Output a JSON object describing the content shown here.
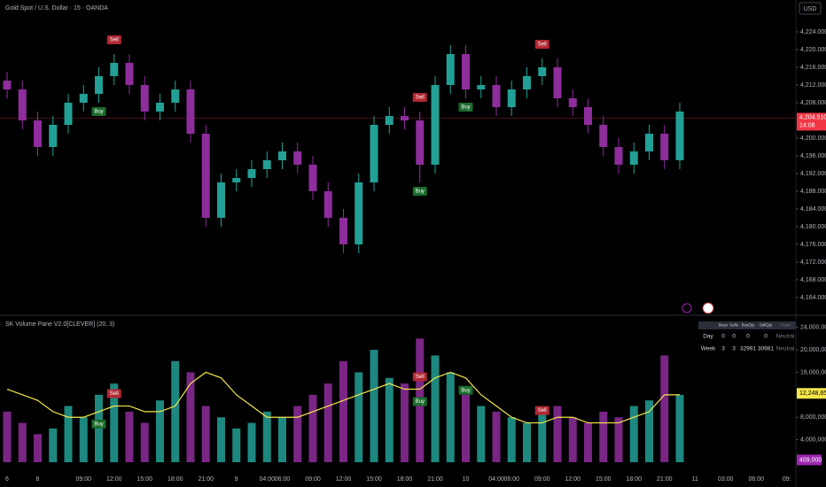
{
  "header": {
    "title": "Gold Spot / U.S. Dollar · 15 · OANDA",
    "currency": "USD",
    "indicator": "SK Volume Pane V2.0[CLEVER] (20, 3)"
  },
  "chart_data": [
    {
      "type": "candlestick",
      "open": [
        4213,
        4211,
        4204,
        4198,
        4203,
        4208,
        4210,
        4214,
        4217,
        4212,
        4206,
        4208,
        4211,
        4201,
        4182,
        4190,
        4191,
        4193,
        4195,
        4197,
        4194,
        4188,
        4182,
        4176,
        4190,
        4203,
        4205,
        4204,
        4194,
        4212,
        4219,
        4211,
        4212,
        4207,
        4211,
        4214,
        4216,
        4209,
        4207,
        4203,
        4198,
        4194,
        4197,
        4201,
        4195,
        null,
        null,
        null,
        null,
        null,
        null,
        null
      ],
      "high": [
        4215,
        4213,
        4206,
        4205,
        4210,
        4212,
        4216,
        4219,
        4219,
        4214,
        4210,
        4213,
        4213,
        4203,
        4192,
        4193,
        4195,
        4197,
        4199,
        4199,
        4196,
        4190,
        4184,
        4192,
        4205,
        4207,
        4207,
        4206,
        4214,
        4221,
        4221,
        4214,
        4214,
        4213,
        4216,
        4218,
        4218,
        4211,
        4209,
        4205,
        4200,
        4199,
        4203,
        4203,
        4208,
        null,
        null,
        null,
        null,
        null,
        null,
        null
      ],
      "low": [
        4209,
        4202,
        4196,
        4196,
        4201,
        4206,
        4208,
        4212,
        4210,
        4204,
        4204,
        4206,
        4199,
        4180,
        4180,
        4188,
        4189,
        4191,
        4193,
        4192,
        4186,
        4180,
        4174,
        4174,
        4188,
        4201,
        4202,
        4190,
        4192,
        4210,
        4209,
        4209,
        4205,
        4205,
        4209,
        4212,
        4207,
        4205,
        4201,
        4196,
        4192,
        4192,
        4195,
        4193,
        4193,
        null,
        null,
        null,
        null,
        null,
        null,
        null
      ],
      "close": [
        4211,
        4204,
        4198,
        4203,
        4208,
        4210,
        4214,
        4217,
        4212,
        4206,
        4208,
        4211,
        4201,
        4182,
        4190,
        4191,
        4193,
        4195,
        4197,
        4194,
        4188,
        4182,
        4176,
        4190,
        4203,
        4205,
        4204,
        4194,
        4212,
        4219,
        4211,
        4212,
        4207,
        4211,
        4214,
        4216,
        4209,
        4207,
        4203,
        4198,
        4194,
        4197,
        4201,
        4195,
        4206,
        null,
        null,
        null,
        null,
        null,
        null,
        null
      ],
      "up_color": "#22a095",
      "down_color": "#8e2d9c",
      "ylim": [
        4160.2,
        4231.2
      ],
      "yticks": [
        {
          "value": 4164,
          "label": "4,164.000"
        },
        {
          "value": 4168,
          "label": "4,168.000"
        },
        {
          "value": 4172,
          "label": "4,172.000"
        },
        {
          "value": 4176,
          "label": "4,176.000"
        },
        {
          "value": 4180,
          "label": "4,180.000"
        },
        {
          "value": 4184,
          "label": "4,184.000"
        },
        {
          "value": 4188,
          "label": "4,188.000"
        },
        {
          "value": 4192,
          "label": "4,192.000"
        },
        {
          "value": 4196,
          "label": "4,196.000"
        },
        {
          "value": 4200,
          "label": "4,200.000"
        },
        {
          "value": 4208,
          "label": "4,208.000"
        },
        {
          "value": 4212,
          "label": "4,212.000"
        },
        {
          "value": 4216,
          "label": "4,216.000"
        },
        {
          "value": 4220,
          "label": "4,220.000"
        },
        {
          "value": 4224,
          "label": "4,224.000"
        }
      ],
      "price_label": {
        "value": 4204.51,
        "label": "4,204.510"
      },
      "countdown": "14:08",
      "signals": [
        {
          "label": "Sell",
          "index": 7
        },
        {
          "label": "Buy",
          "index": 6
        },
        {
          "label": "Sell",
          "index": 27
        },
        {
          "label": "Buy",
          "index": 27
        },
        {
          "label": "Sell",
          "index": 35
        },
        {
          "label": "Buy",
          "index": 30
        }
      ]
    },
    {
      "type": "bar",
      "categories": [
        "6",
        null,
        "8",
        null,
        null,
        "09:00",
        null,
        "12:00",
        null,
        "15:00",
        null,
        "18:00",
        null,
        "21:00",
        null,
        "9",
        null,
        "04:00",
        "06:00",
        null,
        "09:00",
        null,
        "12:00",
        null,
        "15:00",
        null,
        "18:00",
        null,
        "21:00",
        null,
        "10",
        null,
        "04:00",
        "06:00",
        null,
        "09:00",
        null,
        "12:00",
        null,
        "15:00",
        null,
        "18:00",
        null,
        "21:00",
        null,
        "11",
        null,
        "03:00",
        null,
        "06:00",
        null,
        "09:"
      ],
      "series": [
        {
          "name": "Volume",
          "values": [
            9000000,
            7000000,
            5000000,
            6000000,
            10000000,
            8000000,
            12000000,
            14000000,
            9000000,
            7000000,
            11000000,
            18000000,
            16000000,
            10000000,
            8000000,
            6000000,
            7000000,
            9000000,
            8000000,
            10000000,
            12000000,
            14000000,
            18000000,
            16000000,
            20000000,
            15000000,
            14000000,
            22000000,
            19000000,
            16000000,
            12000000,
            10000000,
            9000000,
            8000000,
            7000000,
            9000000,
            10000000,
            8000000,
            7000000,
            9000000,
            8000000,
            10000000,
            11000000,
            19000000,
            12000000,
            null,
            null,
            null,
            null,
            null,
            null,
            null
          ]
        },
        {
          "name": "MA",
          "color": "#f5e64a",
          "values": [
            13000000,
            12000000,
            11000000,
            9000000,
            8000000,
            8000000,
            9000000,
            10000000,
            10000000,
            9000000,
            9000000,
            10000000,
            14000000,
            16000000,
            15000000,
            12000000,
            10000000,
            8000000,
            8000000,
            8000000,
            9000000,
            10000000,
            11000000,
            12000000,
            13000000,
            14000000,
            13000000,
            13000000,
            15000000,
            16000000,
            15000000,
            12000000,
            10000000,
            8000000,
            7000000,
            7000000,
            8000000,
            8000000,
            7000000,
            7000000,
            7000000,
            8000000,
            9000000,
            12000000,
            12000000,
            null,
            null,
            null,
            null,
            null,
            null,
            null
          ]
        }
      ],
      "ylim": [
        -1260000,
        26000000
      ],
      "yticks": [
        {
          "value": 4000000,
          "label": "4,000,000"
        },
        {
          "value": 8000000,
          "label": "8,000,000"
        },
        {
          "value": 16000000,
          "label": "16,000,000"
        },
        {
          "value": 20000000,
          "label": "20,000,000"
        },
        {
          "value": 24000000,
          "label": "24,000,000"
        }
      ],
      "last_value": {
        "value": 12248650,
        "label": "12,248,650"
      },
      "low_value": {
        "value": 409000,
        "label": "409,000"
      },
      "table": {
        "header": [
          "",
          "Buys",
          "Sells",
          "BuyQty",
          "SellQty",
          "Trend"
        ],
        "rows": [
          [
            "Day",
            "0",
            "0",
            "0",
            "0",
            "Neutral"
          ],
          [
            "Week",
            "3",
            "3",
            "32991",
            "30981",
            "Neutral"
          ]
        ]
      }
    }
  ]
}
